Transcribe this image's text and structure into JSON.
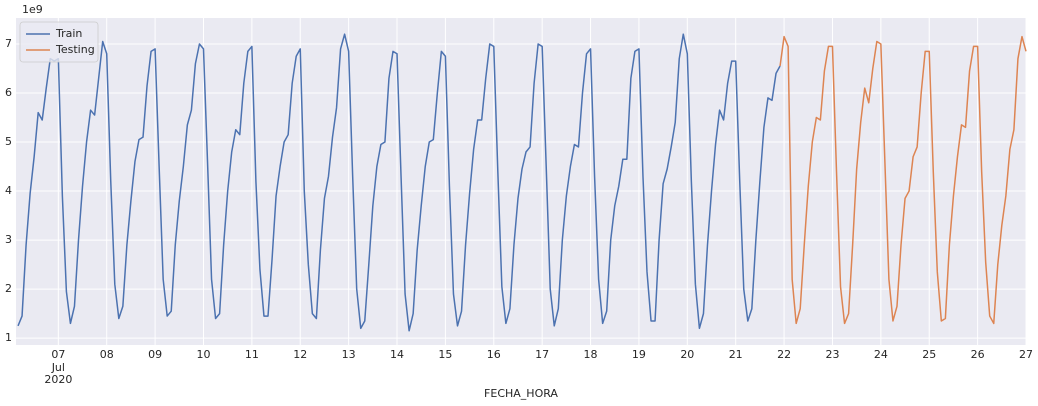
{
  "chart_data": {
    "type": "line",
    "xlabel": "FECHA_HORA",
    "y_offset_label": "1e9",
    "legend": "upper left",
    "grid": true,
    "xlim": [
      "2020-07-06T03:00",
      "2020-07-27T00:00"
    ],
    "ylim": [
      0.86,
      7.53
    ],
    "yticks": [
      1,
      2,
      3,
      4,
      5,
      6,
      7
    ],
    "xticks": [
      {
        "value": "2020-07-07T00:00",
        "label": "07"
      },
      {
        "value": "2020-07-08T00:00",
        "label": "08"
      },
      {
        "value": "2020-07-09T00:00",
        "label": "09"
      },
      {
        "value": "2020-07-10T00:00",
        "label": "10"
      },
      {
        "value": "2020-07-11T00:00",
        "label": "11"
      },
      {
        "value": "2020-07-12T00:00",
        "label": "12"
      },
      {
        "value": "2020-07-13T00:00",
        "label": "13"
      },
      {
        "value": "2020-07-14T00:00",
        "label": "14"
      },
      {
        "value": "2020-07-15T00:00",
        "label": "15"
      },
      {
        "value": "2020-07-16T00:00",
        "label": "16"
      },
      {
        "value": "2020-07-17T00:00",
        "label": "17"
      },
      {
        "value": "2020-07-18T00:00",
        "label": "18"
      },
      {
        "value": "2020-07-19T00:00",
        "label": "19"
      },
      {
        "value": "2020-07-20T00:00",
        "label": "20"
      },
      {
        "value": "2020-07-21T00:00",
        "label": "21"
      },
      {
        "value": "2020-07-22T00:00",
        "label": "22"
      },
      {
        "value": "2020-07-23T00:00",
        "label": "23"
      },
      {
        "value": "2020-07-24T00:00",
        "label": "24"
      },
      {
        "value": "2020-07-25T00:00",
        "label": "25"
      },
      {
        "value": "2020-07-26T00:00",
        "label": "26"
      },
      {
        "value": "2020-07-27T00:00",
        "label": "27"
      }
    ],
    "xtick_sublabels": [
      "Jul",
      "2020"
    ],
    "series": [
      {
        "name": "Train",
        "color": "#4c72b0",
        "x": [
          "2020-07-06T04:00",
          "2020-07-06T06:00",
          "2020-07-06T08:00",
          "2020-07-06T10:00",
          "2020-07-06T12:00",
          "2020-07-06T14:00",
          "2020-07-06T16:00",
          "2020-07-06T18:00",
          "2020-07-06T20:00",
          "2020-07-06T22:00",
          "2020-07-07T00:00",
          "2020-07-07T02:00",
          "2020-07-07T04:00",
          "2020-07-07T06:00",
          "2020-07-07T08:00",
          "2020-07-07T10:00",
          "2020-07-07T12:00",
          "2020-07-07T14:00",
          "2020-07-07T16:00",
          "2020-07-07T18:00",
          "2020-07-07T20:00",
          "2020-07-07T22:00",
          "2020-07-08T00:00",
          "2020-07-08T02:00",
          "2020-07-08T04:00",
          "2020-07-08T06:00",
          "2020-07-08T08:00",
          "2020-07-08T10:00",
          "2020-07-08T12:00",
          "2020-07-08T14:00",
          "2020-07-08T16:00",
          "2020-07-08T18:00",
          "2020-07-08T20:00",
          "2020-07-08T22:00",
          "2020-07-09T00:00",
          "2020-07-09T02:00",
          "2020-07-09T04:00",
          "2020-07-09T06:00",
          "2020-07-09T08:00",
          "2020-07-09T10:00",
          "2020-07-09T12:00",
          "2020-07-09T14:00",
          "2020-07-09T16:00",
          "2020-07-09T18:00",
          "2020-07-09T20:00",
          "2020-07-09T22:00",
          "2020-07-10T00:00",
          "2020-07-10T02:00",
          "2020-07-10T04:00",
          "2020-07-10T06:00",
          "2020-07-10T08:00",
          "2020-07-10T10:00",
          "2020-07-10T12:00",
          "2020-07-10T14:00",
          "2020-07-10T16:00",
          "2020-07-10T18:00",
          "2020-07-10T20:00",
          "2020-07-10T22:00",
          "2020-07-11T00:00",
          "2020-07-11T02:00",
          "2020-07-11T04:00",
          "2020-07-11T06:00",
          "2020-07-11T08:00",
          "2020-07-11T10:00",
          "2020-07-11T12:00",
          "2020-07-11T14:00",
          "2020-07-11T16:00",
          "2020-07-11T18:00",
          "2020-07-11T20:00",
          "2020-07-11T22:00",
          "2020-07-12T00:00",
          "2020-07-12T02:00",
          "2020-07-12T04:00",
          "2020-07-12T06:00",
          "2020-07-12T08:00",
          "2020-07-12T10:00",
          "2020-07-12T12:00",
          "2020-07-12T14:00",
          "2020-07-12T16:00",
          "2020-07-12T18:00",
          "2020-07-12T20:00",
          "2020-07-12T22:00",
          "2020-07-13T00:00",
          "2020-07-13T02:00",
          "2020-07-13T04:00",
          "2020-07-13T06:00",
          "2020-07-13T08:00",
          "2020-07-13T10:00",
          "2020-07-13T12:00",
          "2020-07-13T14:00",
          "2020-07-13T16:00",
          "2020-07-13T18:00",
          "2020-07-13T20:00",
          "2020-07-13T22:00",
          "2020-07-14T00:00",
          "2020-07-14T02:00",
          "2020-07-14T04:00",
          "2020-07-14T06:00",
          "2020-07-14T08:00",
          "2020-07-14T10:00",
          "2020-07-14T12:00",
          "2020-07-14T14:00",
          "2020-07-14T16:00",
          "2020-07-14T18:00",
          "2020-07-14T20:00",
          "2020-07-14T22:00",
          "2020-07-15T00:00",
          "2020-07-15T02:00",
          "2020-07-15T04:00",
          "2020-07-15T06:00",
          "2020-07-15T08:00",
          "2020-07-15T10:00",
          "2020-07-15T12:00",
          "2020-07-15T14:00",
          "2020-07-15T16:00",
          "2020-07-15T18:00",
          "2020-07-15T20:00",
          "2020-07-15T22:00",
          "2020-07-16T00:00",
          "2020-07-16T02:00",
          "2020-07-16T04:00",
          "2020-07-16T06:00",
          "2020-07-16T08:00",
          "2020-07-16T10:00",
          "2020-07-16T12:00",
          "2020-07-16T14:00",
          "2020-07-16T16:00",
          "2020-07-16T18:00",
          "2020-07-16T20:00",
          "2020-07-16T22:00",
          "2020-07-17T00:00",
          "2020-07-17T02:00",
          "2020-07-17T04:00",
          "2020-07-17T06:00",
          "2020-07-17T08:00",
          "2020-07-17T10:00",
          "2020-07-17T12:00",
          "2020-07-17T14:00",
          "2020-07-17T16:00",
          "2020-07-17T18:00",
          "2020-07-17T20:00",
          "2020-07-17T22:00",
          "2020-07-18T00:00",
          "2020-07-18T02:00",
          "2020-07-18T04:00",
          "2020-07-18T06:00",
          "2020-07-18T08:00",
          "2020-07-18T10:00",
          "2020-07-18T12:00",
          "2020-07-18T14:00",
          "2020-07-18T16:00",
          "2020-07-18T18:00",
          "2020-07-18T20:00",
          "2020-07-18T22:00",
          "2020-07-19T00:00",
          "2020-07-19T02:00",
          "2020-07-19T04:00",
          "2020-07-19T06:00",
          "2020-07-19T08:00",
          "2020-07-19T10:00",
          "2020-07-19T12:00",
          "2020-07-19T14:00",
          "2020-07-19T16:00",
          "2020-07-19T18:00",
          "2020-07-19T20:00",
          "2020-07-19T22:00",
          "2020-07-20T00:00",
          "2020-07-20T02:00",
          "2020-07-20T04:00",
          "2020-07-20T06:00",
          "2020-07-20T08:00",
          "2020-07-20T10:00",
          "2020-07-20T12:00",
          "2020-07-20T14:00",
          "2020-07-20T16:00",
          "2020-07-20T18:00",
          "2020-07-20T20:00",
          "2020-07-20T22:00",
          "2020-07-21T00:00",
          "2020-07-21T02:00",
          "2020-07-21T04:00",
          "2020-07-21T06:00",
          "2020-07-21T08:00",
          "2020-07-21T10:00",
          "2020-07-21T12:00",
          "2020-07-21T14:00",
          "2020-07-21T16:00",
          "2020-07-21T18:00",
          "2020-07-21T20:00",
          "2020-07-21T22:00"
        ],
        "values": [
          1.25,
          1.45,
          2.9,
          3.95,
          4.7,
          5.6,
          5.45,
          6.1,
          6.7,
          6.65,
          6.7,
          3.9,
          1.95,
          1.3,
          1.65,
          3.0,
          4.1,
          5.0,
          5.65,
          5.55,
          6.3,
          7.05,
          6.8,
          4.2,
          2.1,
          1.4,
          1.65,
          2.9,
          3.8,
          4.6,
          5.05,
          5.1,
          6.15,
          6.85,
          6.9,
          4.5,
          2.2,
          1.45,
          1.55,
          2.9,
          3.8,
          4.5,
          5.35,
          5.65,
          6.6,
          7.0,
          6.9,
          4.6,
          2.2,
          1.4,
          1.5,
          2.9,
          4.0,
          4.8,
          5.25,
          5.15,
          6.2,
          6.85,
          6.95,
          4.2,
          2.4,
          1.45,
          1.45,
          2.6,
          3.9,
          4.5,
          5.0,
          5.15,
          6.2,
          6.75,
          6.9,
          4.0,
          2.5,
          1.5,
          1.4,
          2.8,
          3.85,
          4.3,
          5.1,
          5.7,
          6.9,
          7.2,
          6.85,
          4.3,
          2.0,
          1.2,
          1.35,
          2.5,
          3.7,
          4.5,
          4.95,
          5.0,
          6.3,
          6.85,
          6.8,
          4.3,
          1.9,
          1.15,
          1.5,
          2.8,
          3.7,
          4.5,
          5.0,
          5.05,
          6.0,
          6.85,
          6.75,
          4.1,
          1.9,
          1.25,
          1.55,
          2.9,
          3.95,
          4.85,
          5.45,
          5.45,
          6.3,
          7.0,
          6.95,
          4.4,
          2.05,
          1.3,
          1.6,
          2.9,
          3.85,
          4.45,
          4.8,
          4.9,
          6.2,
          7.0,
          6.95,
          4.5,
          2.0,
          1.25,
          1.6,
          3.0,
          3.9,
          4.5,
          4.95,
          4.9,
          6.0,
          6.8,
          6.9,
          4.3,
          2.2,
          1.3,
          1.55,
          3.0,
          3.7,
          4.1,
          4.65,
          4.65,
          6.3,
          6.85,
          6.9,
          4.3,
          2.35,
          1.35,
          1.35,
          3.0,
          4.15,
          4.45,
          4.9,
          5.4,
          6.7,
          7.2,
          6.8,
          4.2,
          2.1,
          1.2,
          1.5,
          2.9,
          4.0,
          4.95,
          5.65,
          5.45,
          6.2,
          6.65,
          6.65,
          4.2,
          2.0,
          1.35,
          1.6,
          3.0,
          4.2,
          5.3,
          5.9,
          5.85,
          6.4,
          6.55
        ]
      },
      {
        "name": "Testing",
        "color": "#dd8452",
        "x": [
          "2020-07-21T22:00",
          "2020-07-22T00:00",
          "2020-07-22T02:00",
          "2020-07-22T04:00",
          "2020-07-22T06:00",
          "2020-07-22T08:00",
          "2020-07-22T10:00",
          "2020-07-22T12:00",
          "2020-07-22T14:00",
          "2020-07-22T16:00",
          "2020-07-22T18:00",
          "2020-07-22T20:00",
          "2020-07-22T22:00",
          "2020-07-23T00:00",
          "2020-07-23T02:00",
          "2020-07-23T04:00",
          "2020-07-23T06:00",
          "2020-07-23T08:00",
          "2020-07-23T10:00",
          "2020-07-23T12:00",
          "2020-07-23T14:00",
          "2020-07-23T16:00",
          "2020-07-23T18:00",
          "2020-07-23T20:00",
          "2020-07-23T22:00",
          "2020-07-24T00:00",
          "2020-07-24T02:00",
          "2020-07-24T04:00",
          "2020-07-24T06:00",
          "2020-07-24T08:00",
          "2020-07-24T10:00",
          "2020-07-24T12:00",
          "2020-07-24T14:00",
          "2020-07-24T16:00",
          "2020-07-24T18:00",
          "2020-07-24T20:00",
          "2020-07-24T22:00",
          "2020-07-25T00:00",
          "2020-07-25T02:00",
          "2020-07-25T04:00",
          "2020-07-25T06:00",
          "2020-07-25T08:00",
          "2020-07-25T10:00",
          "2020-07-25T12:00",
          "2020-07-25T14:00",
          "2020-07-25T16:00",
          "2020-07-25T18:00",
          "2020-07-25T20:00",
          "2020-07-25T22:00",
          "2020-07-26T00:00",
          "2020-07-26T02:00",
          "2020-07-26T04:00",
          "2020-07-26T06:00",
          "2020-07-26T08:00",
          "2020-07-26T10:00",
          "2020-07-26T12:00",
          "2020-07-26T14:00",
          "2020-07-26T16:00",
          "2020-07-26T18:00",
          "2020-07-26T20:00",
          "2020-07-26T22:00",
          "2020-07-27T00:00"
        ],
        "values": [
          6.55,
          7.15,
          6.95,
          2.2,
          1.3,
          1.6,
          2.9,
          4.1,
          5.0,
          5.5,
          5.45,
          6.45,
          6.95,
          6.95,
          4.4,
          2.05,
          1.3,
          1.5,
          2.9,
          4.45,
          5.4,
          6.1,
          5.8,
          6.5,
          7.05,
          7.0,
          4.6,
          2.2,
          1.35,
          1.65,
          2.9,
          3.85,
          4.0,
          4.7,
          4.9,
          6.0,
          6.85,
          6.85,
          4.4,
          2.35,
          1.35,
          1.4,
          2.9,
          3.9,
          4.7,
          5.35,
          5.3,
          6.45,
          6.95,
          6.95,
          4.4,
          2.55,
          1.45,
          1.3,
          2.5,
          3.3,
          3.9,
          4.85,
          5.25,
          6.7,
          7.15,
          6.85
        ]
      }
    ]
  }
}
